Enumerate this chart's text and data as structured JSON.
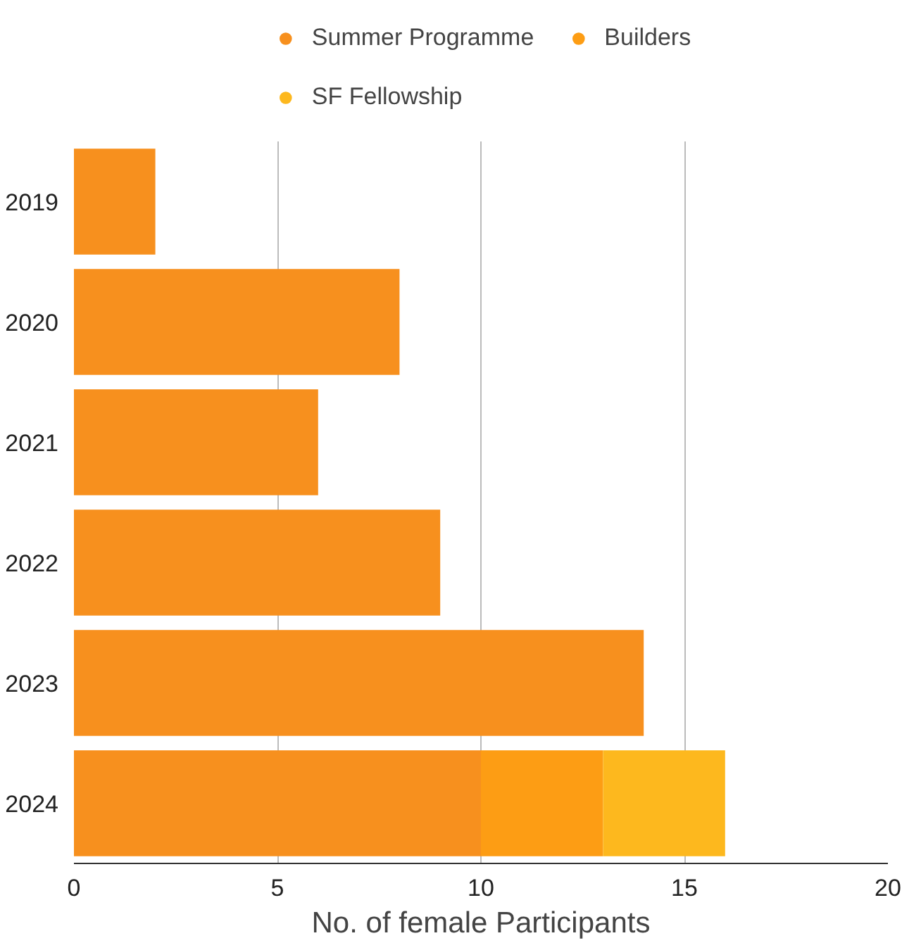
{
  "chart_data": {
    "type": "bar",
    "orientation": "horizontal",
    "stacked": true,
    "categories": [
      "2019",
      "2020",
      "2021",
      "2022",
      "2023",
      "2024"
    ],
    "series": [
      {
        "name": "Summer Programme",
        "color": "#f7901e",
        "values": [
          2,
          8,
          6,
          9,
          14,
          10
        ]
      },
      {
        "name": "Builders",
        "color": "#fd9d14",
        "values": [
          null,
          null,
          null,
          null,
          null,
          3
        ]
      },
      {
        "name": "SF Fellowship",
        "color": "#fdb81e",
        "values": [
          null,
          null,
          null,
          null,
          null,
          3
        ]
      }
    ],
    "xlabel": "No. of female Participants",
    "xlim": [
      0,
      20
    ],
    "xticks": [
      0,
      5,
      10,
      15,
      20
    ],
    "grid": "x",
    "legend": "top"
  }
}
